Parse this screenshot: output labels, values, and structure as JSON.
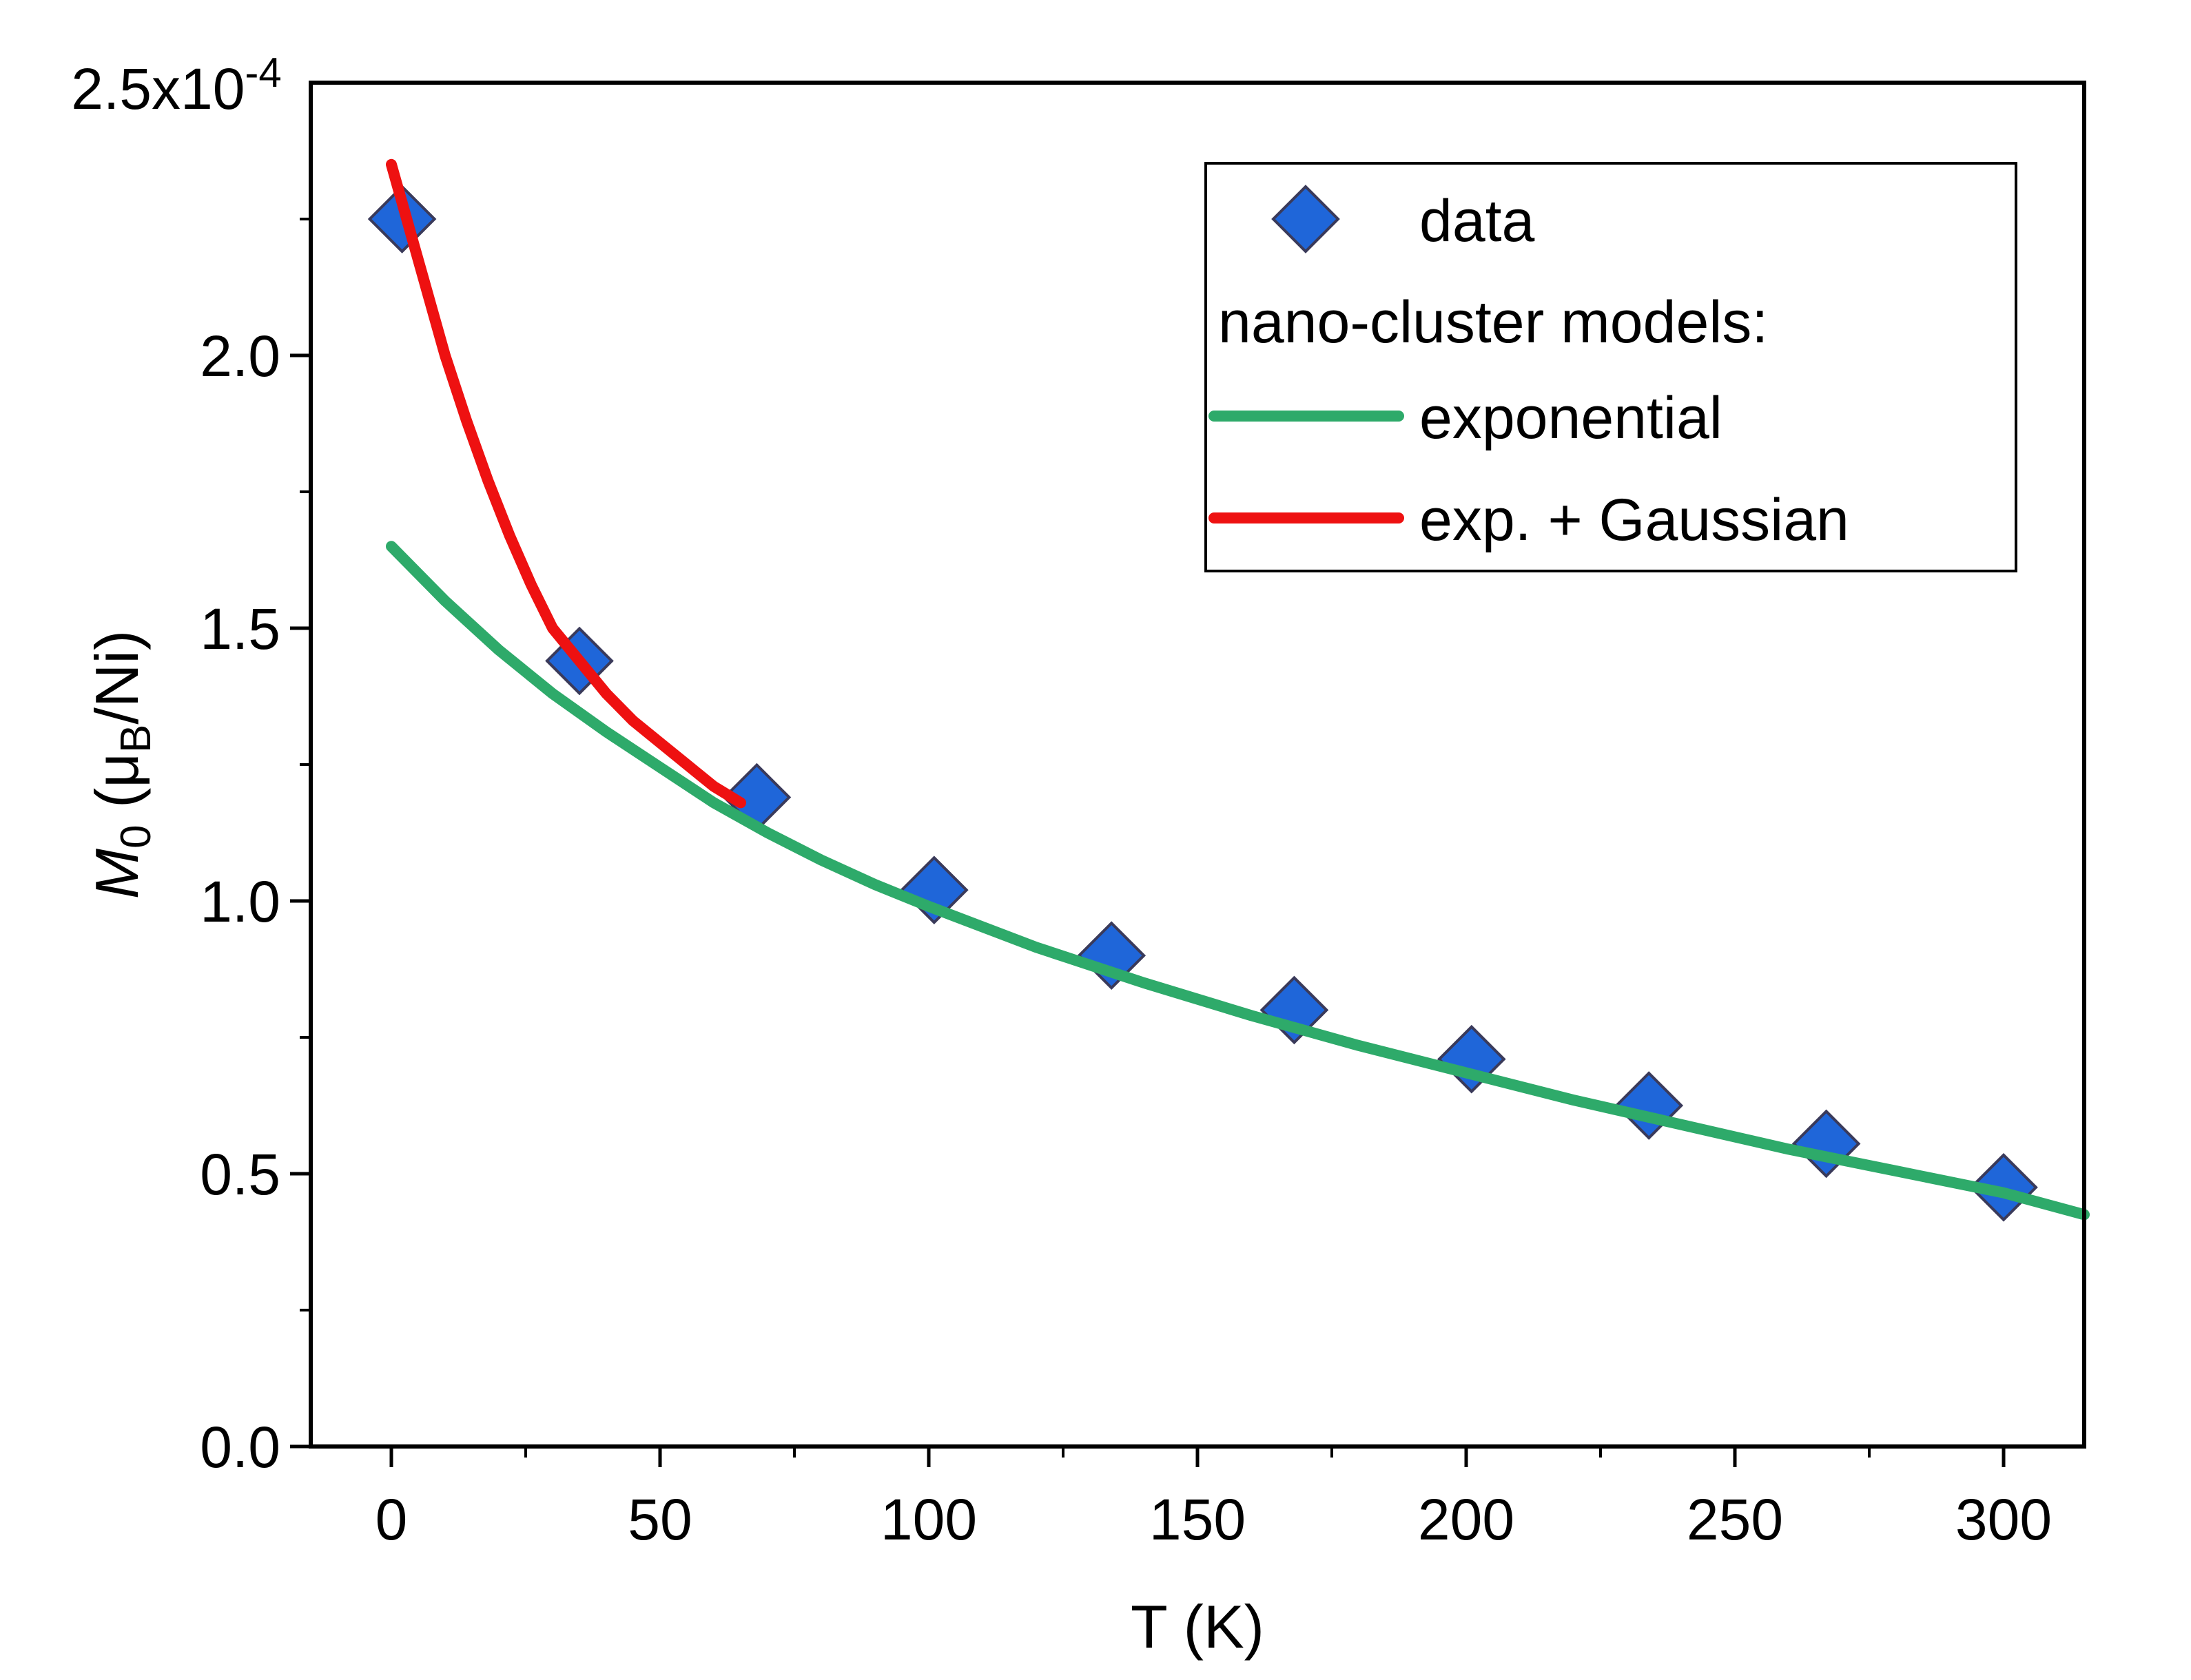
{
  "chart_data": {
    "type": "scatter",
    "title": "",
    "xlabel": "T (K)",
    "ylabel": {
      "main": "M",
      "sub": "0",
      "unit_open": " (μ",
      "unit_sub": "B",
      "unit_close": "/Ni)"
    },
    "xlim": [
      -15,
      315
    ],
    "ylim": [
      0.0,
      2.5
    ],
    "y_scale_label": {
      "base": "2.5x10",
      "exp": "-4"
    },
    "x_ticks": [
      0,
      50,
      100,
      150,
      200,
      250,
      300
    ],
    "x_tick_labels": [
      "0",
      "50",
      "100",
      "150",
      "200",
      "250",
      "300"
    ],
    "y_ticks": [
      0.0,
      0.5,
      1.0,
      1.5,
      2.0
    ],
    "y_tick_labels": [
      "0.0",
      "0.5",
      "1.0",
      "1.5",
      "2.0"
    ],
    "series": [
      {
        "name": "data",
        "kind": "scatter",
        "marker": "diamond",
        "color": "#1f66d9",
        "edge_color": "#3a3a5a",
        "x": [
          2,
          35,
          68,
          101,
          134,
          168,
          201,
          234,
          267,
          300
        ],
        "y": [
          2.25,
          1.44,
          1.19,
          1.02,
          0.9,
          0.8,
          0.71,
          0.625,
          0.555,
          0.475
        ]
      },
      {
        "name": "exponential",
        "kind": "line",
        "color": "#2eaa6a",
        "x": [
          0,
          10,
          20,
          30,
          40,
          50,
          60,
          70,
          80,
          90,
          100,
          120,
          140,
          160,
          180,
          200,
          220,
          240,
          260,
          280,
          300,
          315
        ],
        "y": [
          1.65,
          1.55,
          1.46,
          1.38,
          1.31,
          1.245,
          1.18,
          1.125,
          1.075,
          1.03,
          0.99,
          0.915,
          0.85,
          0.79,
          0.735,
          0.685,
          0.635,
          0.59,
          0.545,
          0.505,
          0.465,
          0.425
        ]
      },
      {
        "name": "exp. + Gaussian",
        "kind": "line",
        "color": "#ee1111",
        "x": [
          0,
          2,
          4,
          6,
          8,
          10,
          14,
          18,
          22,
          26,
          30,
          35,
          40,
          45,
          50,
          55,
          60,
          65
        ],
        "y": [
          2.35,
          2.28,
          2.21,
          2.14,
          2.07,
          2.0,
          1.88,
          1.77,
          1.67,
          1.58,
          1.5,
          1.44,
          1.38,
          1.33,
          1.29,
          1.25,
          1.21,
          1.18
        ]
      }
    ],
    "legend": {
      "position": "top-right",
      "header": "nano-cluster models:",
      "entries": [
        "data",
        "exponential",
        "exp. + Gaussian"
      ]
    }
  }
}
